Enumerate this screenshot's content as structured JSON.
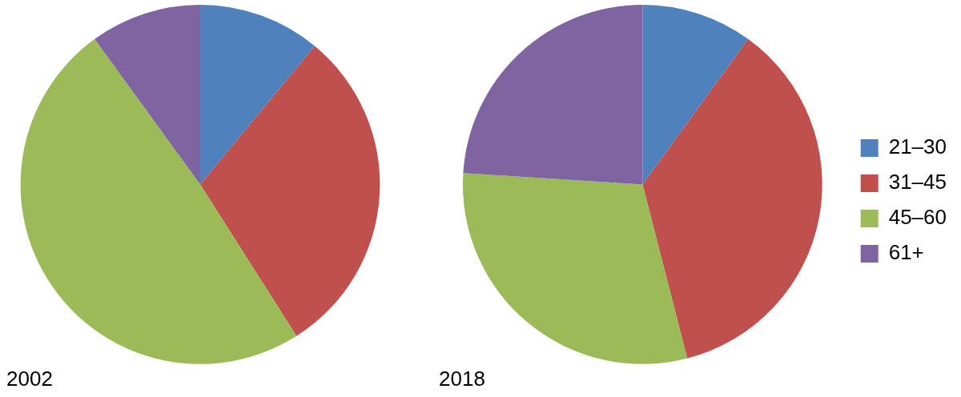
{
  "chart_data": [
    {
      "type": "pie",
      "title": "2002",
      "categories": [
        "21–30",
        "31–45",
        "45–60",
        "61+"
      ],
      "values": [
        11,
        30,
        49,
        10
      ],
      "colors": [
        "#4f81bd",
        "#c0504d",
        "#9bbb59",
        "#8064a2"
      ]
    },
    {
      "type": "pie",
      "title": "2018",
      "categories": [
        "21–30",
        "31–45",
        "45–60",
        "61+"
      ],
      "values": [
        10,
        36,
        30,
        24
      ],
      "colors": [
        "#4f81bd",
        "#c0504d",
        "#9bbb59",
        "#8064a2"
      ],
      "legend": "right"
    }
  ]
}
